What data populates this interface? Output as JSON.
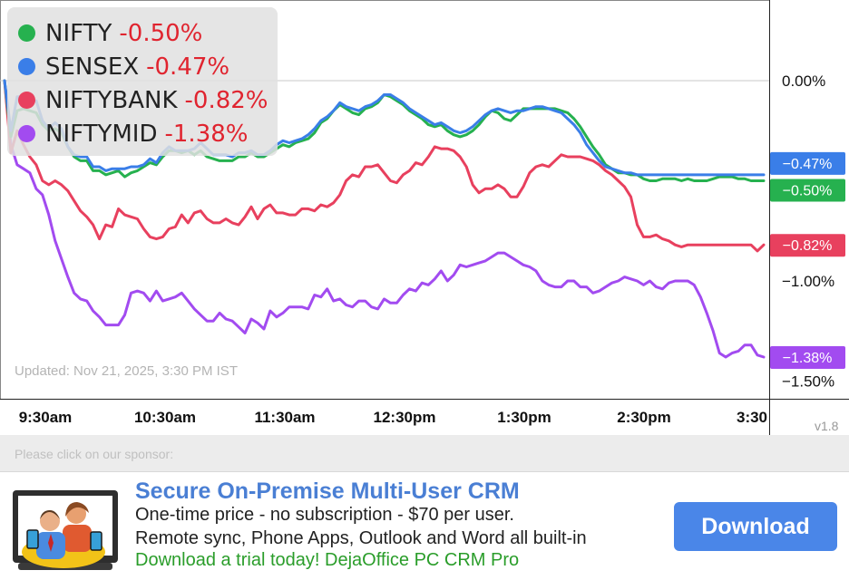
{
  "legend": [
    {
      "name": "NIFTY",
      "change": "-0.50%",
      "color": "#26b14f"
    },
    {
      "name": "SENSEX",
      "change": "-0.47%",
      "color": "#3a7ee8"
    },
    {
      "name": "NIFTYBANK",
      "change": "-0.82%",
      "color": "#e8405e"
    },
    {
      "name": "NIFTYMID",
      "change": "-1.38%",
      "color": "#a24bf0"
    }
  ],
  "updated_text": "Updated: Nov 21, 2025, 3:30 PM IST",
  "version": "v1.8",
  "sponsor_label": "Please click on our sponsor:",
  "ad": {
    "title": "Secure On-Premise Multi-User CRM",
    "line1": "One-time price - no subscription - $70 per user.",
    "line2": "Remote sync, Phone Apps, Outlook and Word all built-in",
    "line3": "Download a trial today! DejaOffice PC CRM Pro",
    "button": "Download"
  },
  "chart_data": {
    "type": "line",
    "x_labels": [
      "9:30am",
      "10:30am",
      "11:30am",
      "12:30pm",
      "1:30pm",
      "2:30pm",
      "3:30"
    ],
    "y_ticks": [
      {
        "value": 0.0,
        "label": "0.00%"
      },
      {
        "value": -1.0,
        "label": "−1.00%"
      },
      {
        "value": -1.5,
        "label": "−1.50%"
      }
    ],
    "ylim": [
      -1.9,
      0.4
    ],
    "series": [
      {
        "name": "NIFTYMID",
        "color": "#a24bf0",
        "end_label": "−1.38%",
        "values": [
          0.0,
          -0.32,
          -0.42,
          -0.44,
          -0.46,
          -0.54,
          -0.57,
          -0.67,
          -0.8,
          -0.89,
          -0.98,
          -1.06,
          -1.09,
          -1.1,
          -1.15,
          -1.18,
          -1.22,
          -1.22,
          -1.22,
          -1.17,
          -1.06,
          -1.05,
          -1.06,
          -1.1,
          -1.05,
          -1.1,
          -1.09,
          -1.08,
          -1.06,
          -1.1,
          -1.14,
          -1.17,
          -1.2,
          -1.2,
          -1.16,
          -1.19,
          -1.2,
          -1.23,
          -1.26,
          -1.19,
          -1.21,
          -1.24,
          -1.15,
          -1.18,
          -1.16,
          -1.13,
          -1.13,
          -1.13,
          -1.14,
          -1.07,
          -1.08,
          -1.04,
          -1.1,
          -1.09,
          -1.12,
          -1.13,
          -1.1,
          -1.1,
          -1.13,
          -1.14,
          -1.09,
          -1.11,
          -1.11,
          -1.07,
          -1.04,
          -1.05,
          -1.01,
          -1.02,
          -0.99,
          -0.95,
          -1.0,
          -0.97,
          -0.92,
          -0.93,
          -0.92,
          -0.91,
          -0.9,
          -0.88,
          -0.86,
          -0.86,
          -0.88,
          -0.9,
          -0.92,
          -0.93,
          -0.95,
          -1.0,
          -1.02,
          -1.03,
          -1.03,
          -1.0,
          -1.0,
          -1.03,
          -1.03,
          -1.06,
          -1.05,
          -1.03,
          -1.01,
          -1.0,
          -0.98,
          -0.99,
          -1.0,
          -1.02,
          -1.0,
          -1.03,
          -1.04,
          -1.01,
          -1.0,
          -1.0,
          -1.0,
          -1.02,
          -1.08,
          -1.16,
          -1.25,
          -1.36,
          -1.38,
          -1.36,
          -1.35,
          -1.32,
          -1.32,
          -1.37,
          -1.38
        ]
      },
      {
        "name": "NIFTYBANK",
        "color": "#e8405e",
        "end_label": "−0.82%",
        "values": [
          0.0,
          -0.36,
          -0.25,
          -0.32,
          -0.38,
          -0.42,
          -0.5,
          -0.52,
          -0.5,
          -0.52,
          -0.55,
          -0.6,
          -0.65,
          -0.68,
          -0.72,
          -0.79,
          -0.72,
          -0.73,
          -0.64,
          -0.67,
          -0.68,
          -0.69,
          -0.74,
          -0.78,
          -0.79,
          -0.78,
          -0.74,
          -0.73,
          -0.67,
          -0.71,
          -0.66,
          -0.65,
          -0.69,
          -0.71,
          -0.71,
          -0.69,
          -0.71,
          -0.72,
          -0.68,
          -0.63,
          -0.69,
          -0.64,
          -0.62,
          -0.66,
          -0.66,
          -0.67,
          -0.67,
          -0.64,
          -0.64,
          -0.65,
          -0.62,
          -0.63,
          -0.61,
          -0.57,
          -0.5,
          -0.47,
          -0.48,
          -0.43,
          -0.43,
          -0.42,
          -0.46,
          -0.5,
          -0.51,
          -0.47,
          -0.45,
          -0.41,
          -0.42,
          -0.38,
          -0.33,
          -0.34,
          -0.34,
          -0.35,
          -0.38,
          -0.43,
          -0.52,
          -0.56,
          -0.54,
          -0.54,
          -0.52,
          -0.54,
          -0.58,
          -0.58,
          -0.53,
          -0.46,
          -0.43,
          -0.42,
          -0.43,
          -0.4,
          -0.37,
          -0.38,
          -0.38,
          -0.38,
          -0.39,
          -0.4,
          -0.42,
          -0.45,
          -0.47,
          -0.5,
          -0.53,
          -0.58,
          -0.72,
          -0.78,
          -0.78,
          -0.77,
          -0.79,
          -0.8,
          -0.82,
          -0.83,
          -0.82,
          -0.82,
          -0.82,
          -0.82,
          -0.82,
          -0.82,
          -0.82,
          -0.82,
          -0.82,
          -0.82,
          -0.82,
          -0.85,
          -0.82
        ]
      },
      {
        "name": "NIFTY",
        "color": "#26b14f",
        "end_label": "−0.50%",
        "values": [
          0.0,
          -0.28,
          -0.15,
          -0.14,
          -0.15,
          -0.16,
          -0.22,
          -0.25,
          -0.24,
          -0.26,
          -0.33,
          -0.38,
          -0.4,
          -0.4,
          -0.45,
          -0.45,
          -0.47,
          -0.46,
          -0.45,
          -0.48,
          -0.46,
          -0.45,
          -0.43,
          -0.41,
          -0.42,
          -0.38,
          -0.35,
          -0.35,
          -0.36,
          -0.35,
          -0.37,
          -0.35,
          -0.38,
          -0.39,
          -0.4,
          -0.4,
          -0.4,
          -0.38,
          -0.38,
          -0.36,
          -0.38,
          -0.38,
          -0.36,
          -0.34,
          -0.32,
          -0.33,
          -0.31,
          -0.3,
          -0.29,
          -0.26,
          -0.21,
          -0.19,
          -0.15,
          -0.12,
          -0.14,
          -0.16,
          -0.17,
          -0.14,
          -0.13,
          -0.11,
          -0.07,
          -0.08,
          -0.1,
          -0.12,
          -0.15,
          -0.17,
          -0.19,
          -0.22,
          -0.23,
          -0.22,
          -0.25,
          -0.27,
          -0.28,
          -0.27,
          -0.25,
          -0.22,
          -0.18,
          -0.15,
          -0.16,
          -0.19,
          -0.2,
          -0.17,
          -0.14,
          -0.14,
          -0.14,
          -0.14,
          -0.14,
          -0.14,
          -0.15,
          -0.16,
          -0.19,
          -0.23,
          -0.28,
          -0.33,
          -0.37,
          -0.42,
          -0.44,
          -0.46,
          -0.46,
          -0.47,
          -0.47,
          -0.49,
          -0.5,
          -0.5,
          -0.49,
          -0.49,
          -0.49,
          -0.5,
          -0.49,
          -0.5,
          -0.5,
          -0.5,
          -0.49,
          -0.48,
          -0.48,
          -0.48,
          -0.49,
          -0.49,
          -0.5,
          -0.5,
          -0.5
        ]
      },
      {
        "name": "SENSEX",
        "color": "#3a7ee8",
        "end_label": "−0.47%",
        "values": [
          0.0,
          -0.25,
          -0.08,
          -0.08,
          -0.1,
          -0.1,
          -0.2,
          -0.24,
          -0.21,
          -0.24,
          -0.33,
          -0.37,
          -0.38,
          -0.38,
          -0.43,
          -0.43,
          -0.45,
          -0.44,
          -0.44,
          -0.44,
          -0.43,
          -0.43,
          -0.42,
          -0.39,
          -0.41,
          -0.36,
          -0.33,
          -0.35,
          -0.35,
          -0.35,
          -0.34,
          -0.31,
          -0.34,
          -0.37,
          -0.37,
          -0.37,
          -0.38,
          -0.36,
          -0.36,
          -0.35,
          -0.37,
          -0.37,
          -0.35,
          -0.32,
          -0.3,
          -0.31,
          -0.3,
          -0.29,
          -0.27,
          -0.24,
          -0.2,
          -0.18,
          -0.15,
          -0.11,
          -0.13,
          -0.14,
          -0.15,
          -0.13,
          -0.12,
          -0.1,
          -0.07,
          -0.07,
          -0.09,
          -0.11,
          -0.14,
          -0.16,
          -0.18,
          -0.2,
          -0.22,
          -0.21,
          -0.23,
          -0.25,
          -0.26,
          -0.25,
          -0.23,
          -0.2,
          -0.17,
          -0.15,
          -0.14,
          -0.15,
          -0.16,
          -0.15,
          -0.15,
          -0.14,
          -0.13,
          -0.13,
          -0.14,
          -0.15,
          -0.16,
          -0.19,
          -0.22,
          -0.26,
          -0.32,
          -0.36,
          -0.4,
          -0.43,
          -0.44,
          -0.45,
          -0.46,
          -0.46,
          -0.47,
          -0.47,
          -0.47,
          -0.47,
          -0.47,
          -0.47,
          -0.47,
          -0.47,
          -0.47,
          -0.47,
          -0.47,
          -0.47,
          -0.47,
          -0.47,
          -0.47,
          -0.47,
          -0.47,
          -0.47,
          -0.47,
          -0.47,
          -0.47
        ]
      }
    ]
  }
}
